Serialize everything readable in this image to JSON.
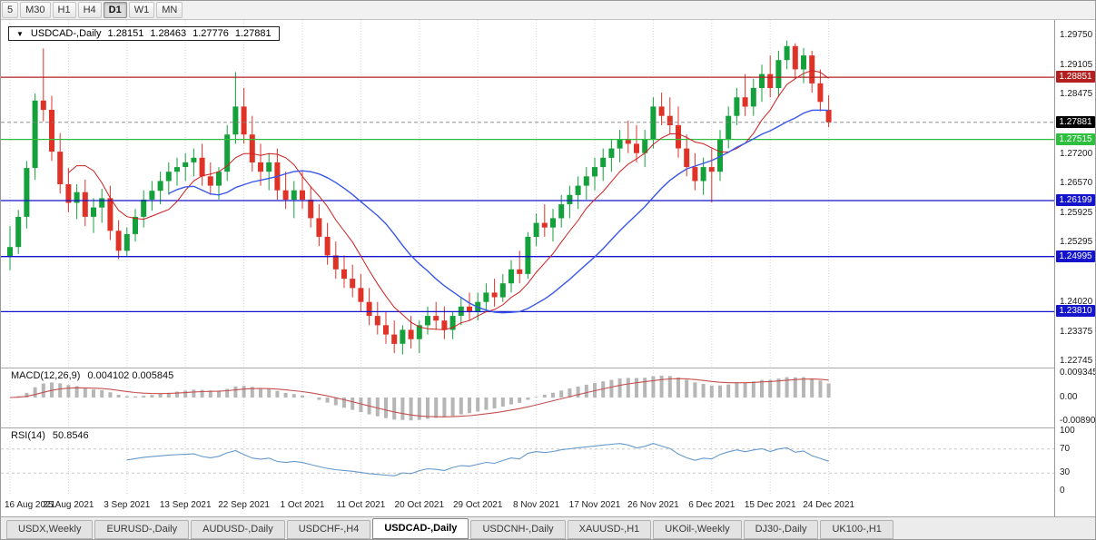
{
  "toolbar": {
    "periods": [
      {
        "label": "5",
        "active": false
      },
      {
        "label": "M30",
        "active": false
      },
      {
        "label": "H1",
        "active": false
      },
      {
        "label": "H4",
        "active": false
      },
      {
        "label": "D1",
        "active": true
      },
      {
        "label": "W1",
        "active": false
      },
      {
        "label": "MN",
        "active": false
      }
    ]
  },
  "chart_data": {
    "type": "candlestick",
    "title": {
      "symbol": "USDCAD-,Daily",
      "open": "1.28151",
      "high": "1.28463",
      "low": "1.27776",
      "close": "1.27881"
    },
    "price_axis_ticks": [
      "1.29750",
      "1.29105",
      "1.28475",
      "1.27200",
      "1.26570",
      "1.25925",
      "1.25295",
      "1.24020",
      "1.23375",
      "1.22745"
    ],
    "price_range": {
      "top": 1.30082,
      "bottom": 1.22609
    },
    "hlines": [
      {
        "value": 1.28851,
        "label": "1.28851",
        "color": "#b22020"
      },
      {
        "value": 1.27515,
        "label": "1.27515",
        "color": "#2fbf3f"
      },
      {
        "value": 1.26199,
        "label": "1.26199",
        "color": "#1414cc"
      },
      {
        "value": 1.24995,
        "label": "1.24995",
        "color": "#1414cc"
      },
      {
        "value": 1.2381,
        "label": "1.23810",
        "color": "#1414cc"
      }
    ],
    "bid": {
      "value": 1.27881,
      "label": "1.27881"
    },
    "label_every": 7,
    "date_labels": [
      "16 Aug 2021",
      "25 Aug 2021",
      "3 Sep 2021",
      "13 Sep 2021",
      "22 Sep 2021",
      "1 Oct 2021",
      "11 Oct 2021",
      "20 Oct 2021",
      "29 Oct 2021",
      "8 Nov 2021",
      "17 Nov 2021",
      "26 Nov 2021",
      "6 Dec 2021",
      "15 Dec 2021",
      "24 Dec 2021"
    ],
    "ma": [
      {
        "name": "ma-fast-red",
        "period": 8,
        "color": "#cc1f1f",
        "width": 1
      },
      {
        "name": "ma-slow-blue",
        "period": 20,
        "color": "#3a57e8",
        "width": 1.4
      }
    ],
    "indicators": {
      "macd": {
        "label": "MACD(12,26,9)",
        "values": "0.004102 0.005845",
        "axis": [
          "0.009345",
          "0.00",
          "-0.00890"
        ],
        "fast": 12,
        "slow": 26,
        "signal": 9,
        "hist_color": "#b6b6b6",
        "signal_color": "#c65050"
      },
      "rsi": {
        "label": "RSI(14)",
        "value": "50.8546",
        "axis": [
          100,
          70,
          30,
          0
        ],
        "levels": [
          70,
          30
        ],
        "period": 14,
        "color": "#6699cc"
      }
    },
    "candles": [
      [
        1.25,
        1.2565,
        1.247,
        1.252
      ],
      [
        1.252,
        1.26,
        1.2505,
        1.2585
      ],
      [
        1.2585,
        1.2705,
        1.256,
        1.269
      ],
      [
        1.269,
        1.285,
        1.2665,
        1.2835
      ],
      [
        1.2835,
        1.2947,
        1.279,
        1.2815
      ],
      [
        1.2815,
        1.2845,
        1.2705,
        1.2725
      ],
      [
        1.2725,
        1.2765,
        1.2635,
        1.2655
      ],
      [
        1.2655,
        1.269,
        1.2595,
        1.2615
      ],
      [
        1.2615,
        1.2655,
        1.258,
        1.2638
      ],
      [
        1.2638,
        1.2665,
        1.2565,
        1.2585
      ],
      [
        1.2585,
        1.2625,
        1.255,
        1.2605
      ],
      [
        1.2605,
        1.2645,
        1.2572,
        1.2625
      ],
      [
        1.2625,
        1.2652,
        1.2535,
        1.2555
      ],
      [
        1.2555,
        1.2578,
        1.2494,
        1.2512
      ],
      [
        1.2512,
        1.2562,
        1.25,
        1.2548
      ],
      [
        1.2548,
        1.2602,
        1.2532,
        1.2585
      ],
      [
        1.2585,
        1.2642,
        1.2562,
        1.2622
      ],
      [
        1.2622,
        1.2662,
        1.2598,
        1.2641
      ],
      [
        1.2641,
        1.2682,
        1.2612,
        1.2662
      ],
      [
        1.2662,
        1.2702,
        1.2632,
        1.2682
      ],
      [
        1.2682,
        1.2712,
        1.2652,
        1.2692
      ],
      [
        1.2692,
        1.2722,
        1.2662,
        1.2702
      ],
      [
        1.2702,
        1.2732,
        1.2672,
        1.2712
      ],
      [
        1.2712,
        1.2742,
        1.2652,
        1.2672
      ],
      [
        1.2672,
        1.2702,
        1.2632,
        1.2652
      ],
      [
        1.2652,
        1.2692,
        1.2622,
        1.2682
      ],
      [
        1.2682,
        1.2782,
        1.2662,
        1.2762
      ],
      [
        1.2762,
        1.2896,
        1.2742,
        1.2822
      ],
      [
        1.2822,
        1.2862,
        1.2742,
        1.2762
      ],
      [
        1.2762,
        1.2802,
        1.2682,
        1.2702
      ],
      [
        1.2702,
        1.2742,
        1.2652,
        1.2682
      ],
      [
        1.2682,
        1.2722,
        1.2642,
        1.2702
      ],
      [
        1.2702,
        1.2732,
        1.2622,
        1.2642
      ],
      [
        1.2642,
        1.2682,
        1.2602,
        1.2622
      ],
      [
        1.2622,
        1.2662,
        1.2582,
        1.2642
      ],
      [
        1.2642,
        1.2682,
        1.2602,
        1.2622
      ],
      [
        1.2622,
        1.2652,
        1.2562,
        1.2582
      ],
      [
        1.2582,
        1.2612,
        1.2522,
        1.2542
      ],
      [
        1.2542,
        1.2572,
        1.2482,
        1.2502
      ],
      [
        1.2502,
        1.2532,
        1.2452,
        1.2472
      ],
      [
        1.2472,
        1.2502,
        1.2432,
        1.2452
      ],
      [
        1.2452,
        1.2482,
        1.2412,
        1.2432
      ],
      [
        1.2432,
        1.2462,
        1.2382,
        1.2402
      ],
      [
        1.2402,
        1.2432,
        1.2352,
        1.2372
      ],
      [
        1.2372,
        1.2402,
        1.2332,
        1.2352
      ],
      [
        1.2352,
        1.2382,
        1.2312,
        1.2332
      ],
      [
        1.2332,
        1.2362,
        1.2292,
        1.2312
      ],
      [
        1.2312,
        1.2352,
        1.2289,
        1.2342
      ],
      [
        1.2342,
        1.2372,
        1.2302,
        1.2322
      ],
      [
        1.2322,
        1.2362,
        1.2292,
        1.2352
      ],
      [
        1.2352,
        1.2392,
        1.2332,
        1.2372
      ],
      [
        1.2372,
        1.2402,
        1.2342,
        1.2362
      ],
      [
        1.2362,
        1.2392,
        1.2322,
        1.2342
      ],
      [
        1.2342,
        1.2382,
        1.2322,
        1.2372
      ],
      [
        1.2372,
        1.2412,
        1.2352,
        1.2392
      ],
      [
        1.2392,
        1.2422,
        1.2362,
        1.2382
      ],
      [
        1.2382,
        1.2422,
        1.2362,
        1.2402
      ],
      [
        1.2402,
        1.2442,
        1.2382,
        1.2422
      ],
      [
        1.2422,
        1.2452,
        1.2392,
        1.2412
      ],
      [
        1.2412,
        1.2462,
        1.2402,
        1.2442
      ],
      [
        1.2442,
        1.2492,
        1.2422,
        1.2472
      ],
      [
        1.2472,
        1.2512,
        1.2442,
        1.2462
      ],
      [
        1.2462,
        1.2552,
        1.2452,
        1.2542
      ],
      [
        1.2542,
        1.2592,
        1.2522,
        1.2572
      ],
      [
        1.2572,
        1.2612,
        1.2542,
        1.2562
      ],
      [
        1.2562,
        1.2602,
        1.2532,
        1.2582
      ],
      [
        1.2582,
        1.2632,
        1.2562,
        1.2612
      ],
      [
        1.2612,
        1.2652,
        1.2582,
        1.2632
      ],
      [
        1.2632,
        1.2672,
        1.2602,
        1.2652
      ],
      [
        1.2652,
        1.2692,
        1.2622,
        1.2672
      ],
      [
        1.2672,
        1.2712,
        1.2642,
        1.2692
      ],
      [
        1.2692,
        1.2732,
        1.2662,
        1.2712
      ],
      [
        1.2712,
        1.2752,
        1.2682,
        1.2732
      ],
      [
        1.2732,
        1.2772,
        1.2702,
        1.2752
      ],
      [
        1.2752,
        1.2792,
        1.2722,
        1.2742
      ],
      [
        1.2742,
        1.2782,
        1.2702,
        1.2722
      ],
      [
        1.2722,
        1.2772,
        1.2692,
        1.2752
      ],
      [
        1.2752,
        1.2842,
        1.2732,
        1.2822
      ],
      [
        1.2822,
        1.2852,
        1.2782,
        1.2802
      ],
      [
        1.2802,
        1.2842,
        1.2762,
        1.2782
      ],
      [
        1.2782,
        1.2822,
        1.2712,
        1.2732
      ],
      [
        1.2732,
        1.2762,
        1.2672,
        1.2692
      ],
      [
        1.2692,
        1.2722,
        1.2642,
        1.2662
      ],
      [
        1.2662,
        1.2712,
        1.2632,
        1.2692
      ],
      [
        1.2692,
        1.2732,
        1.2616,
        1.2682
      ],
      [
        1.2682,
        1.2772,
        1.2662,
        1.2752
      ],
      [
        1.2752,
        1.2822,
        1.2732,
        1.2802
      ],
      [
        1.2802,
        1.2862,
        1.2782,
        1.2842
      ],
      [
        1.2842,
        1.2892,
        1.2802,
        1.2822
      ],
      [
        1.2822,
        1.2882,
        1.2802,
        1.2862
      ],
      [
        1.2862,
        1.2912,
        1.2832,
        1.2892
      ],
      [
        1.2892,
        1.2932,
        1.2842,
        1.2862
      ],
      [
        1.2862,
        1.2942,
        1.2842,
        1.2922
      ],
      [
        1.2922,
        1.2964,
        1.2902,
        1.2952
      ],
      [
        1.2952,
        1.2958,
        1.2882,
        1.2902
      ],
      [
        1.2902,
        1.2948,
        1.2872,
        1.2932
      ],
      [
        1.2932,
        1.2942,
        1.2852,
        1.2872
      ],
      [
        1.2872,
        1.2902,
        1.2812,
        1.2832
      ],
      [
        1.28151,
        1.28463,
        1.27776,
        1.27881
      ]
    ]
  },
  "tabs": [
    {
      "label": "USDX,Weekly",
      "active": false
    },
    {
      "label": "EURUSD-,Daily",
      "active": false
    },
    {
      "label": "AUDUSD-,Daily",
      "active": false
    },
    {
      "label": "USDCHF-,H4",
      "active": false
    },
    {
      "label": "USDCAD-,Daily",
      "active": true
    },
    {
      "label": "USDCNH-,Daily",
      "active": false
    },
    {
      "label": "XAUUSD-,H1",
      "active": false
    },
    {
      "label": "UKOil-,Weekly",
      "active": false
    },
    {
      "label": "DJ30-,Daily",
      "active": false
    },
    {
      "label": "UK100-,H1",
      "active": false
    }
  ],
  "colors": {
    "up": "#14a13c",
    "down": "#e03328",
    "grid": "#d6d6d6"
  }
}
